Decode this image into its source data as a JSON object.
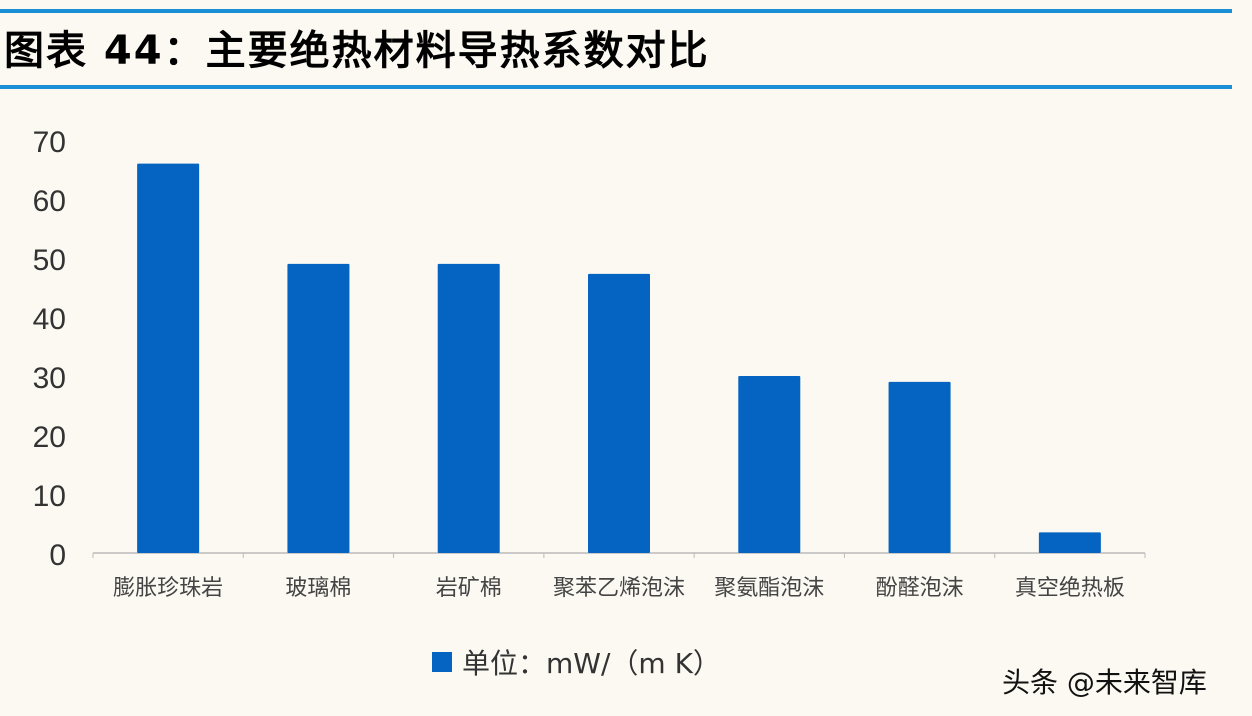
{
  "title": "图表 44：主要绝热材料导热系数对比",
  "watermark": "头条 @未来智库",
  "chart_data": {
    "type": "bar",
    "categories": [
      "膨胀珍珠岩",
      "玻璃棉",
      "岩矿棉",
      "聚苯乙烯泡沫",
      "聚氨酯泡沫",
      "酚醛泡沫",
      "真空绝热板"
    ],
    "series": [
      {
        "name": "单位：mW/（m K）",
        "values": [
          66,
          49,
          49,
          47.3,
          30,
          29,
          3.5
        ],
        "color": "#0563c1"
      }
    ],
    "ylim": [
      0,
      70
    ],
    "yticks": [
      0,
      10,
      20,
      30,
      40,
      50,
      60,
      70
    ],
    "grid": false,
    "legend": "bottom"
  }
}
